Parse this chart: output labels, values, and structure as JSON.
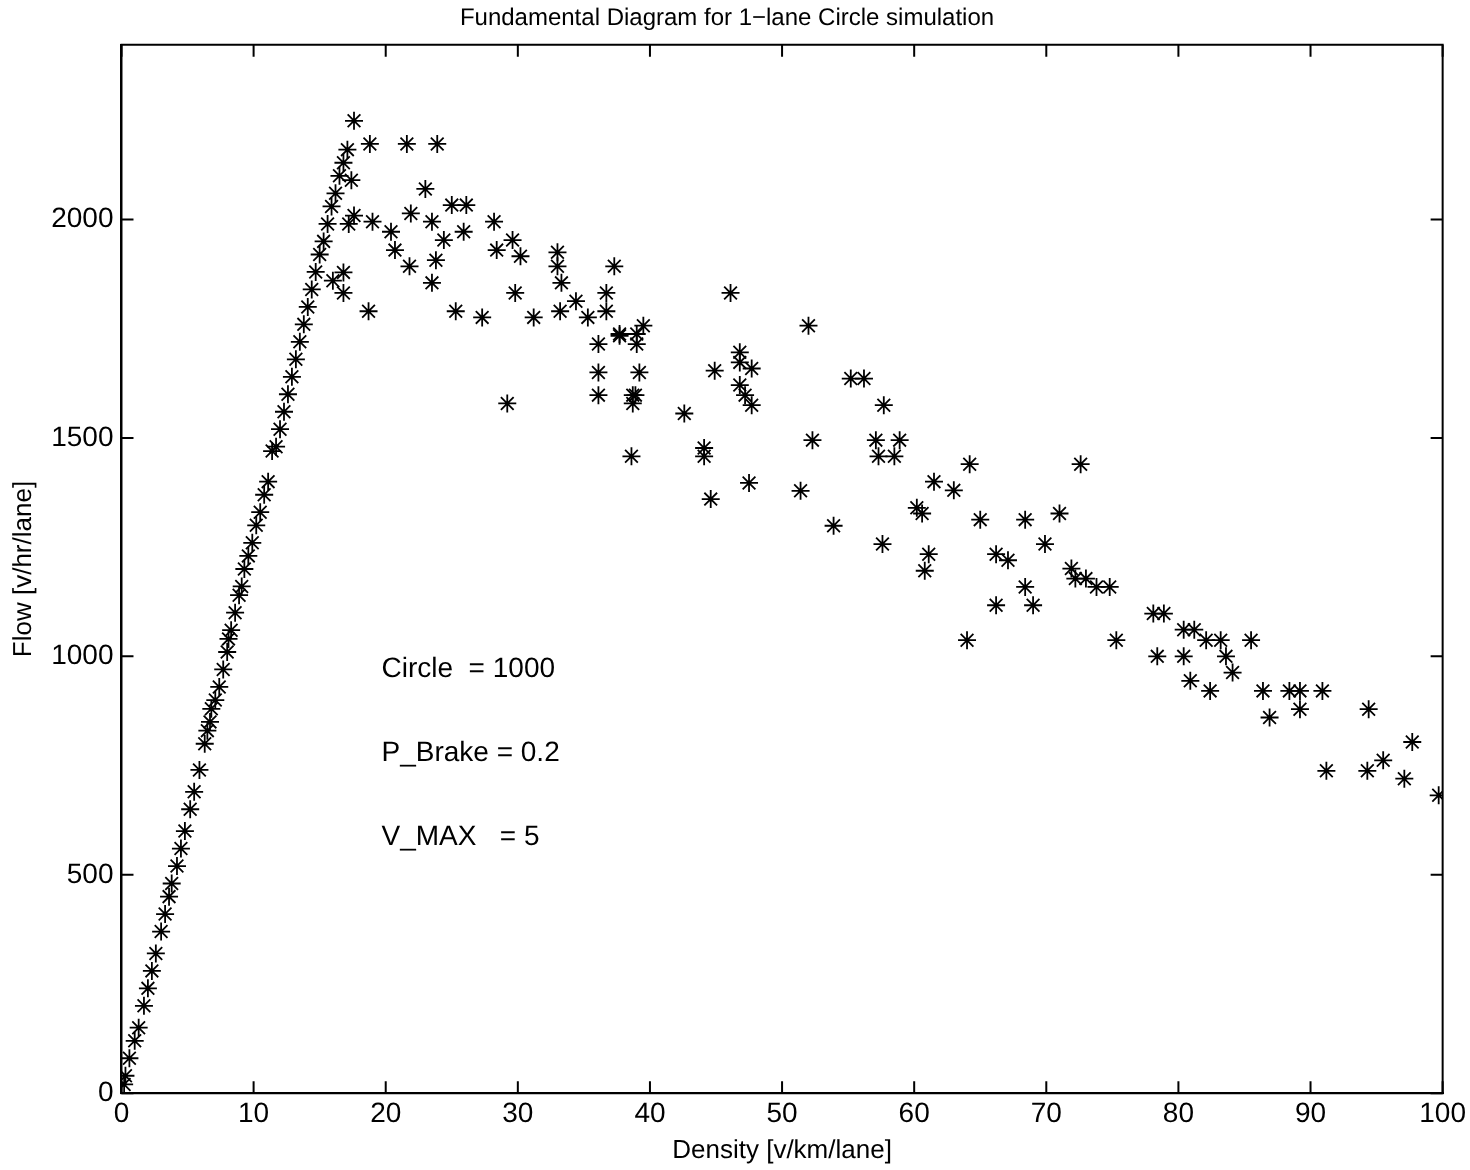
{
  "chart_data": {
    "type": "scatter",
    "title": "Fundamental Diagram for 1−lane Circle simulation",
    "xlabel": "Density [v/km/lane]",
    "ylabel": "Flow [v/hr/lane]",
    "xlim": [
      0,
      100
    ],
    "xticks": [
      0,
      10,
      20,
      30,
      40,
      50,
      60,
      70,
      80,
      90,
      100
    ],
    "ylim": [
      0,
      2400
    ],
    "yticks": [
      0,
      500,
      1000,
      1500,
      2000
    ],
    "grid": false,
    "legend": false,
    "marker": "cross",
    "annotations": [
      "Circle  = 1000",
      "P_Brake = 0.2",
      "V_MAX   = 5"
    ],
    "series": [
      {
        "color": "#000000",
        "x": [
          0.2,
          0.3,
          0.6,
          1,
          1.3,
          1.7,
          2,
          2.3,
          2.6,
          3,
          3.3,
          3.6,
          3.8,
          4.2,
          4.5,
          4.8,
          5.2,
          5.5,
          5.9,
          6.3,
          6.5,
          6.7,
          6.8,
          7.1,
          7.4,
          7.7,
          8,
          8.1,
          8.3,
          8.6,
          8.9,
          9.1,
          9.3,
          9.6,
          9.9,
          10.2,
          10.5,
          10.8,
          11.1,
          11.4,
          11.7,
          12,
          12.3,
          12.6,
          12.9,
          13.2,
          13.5,
          13.8,
          14.1,
          14.4,
          14.7,
          15,
          15.3,
          15.6,
          15.9,
          16.2,
          16.5,
          16.8,
          17.1,
          17.6,
          16,
          16.8,
          16.8,
          17.2,
          17.4,
          18.8,
          21.6,
          23.9,
          23,
          25,
          26.1,
          17.6,
          19,
          20.4,
          21.9,
          20.7,
          23.5,
          24.4,
          25.9,
          23.8,
          21.8,
          23.5,
          18.7,
          28.2,
          29.6,
          28.4,
          30.2,
          33,
          33,
          37.3,
          25.3,
          27.3,
          29.8,
          31.2,
          33.3,
          33.2,
          34.4,
          35.3,
          36.7,
          36.7,
          36.1,
          37.7,
          39,
          39.5,
          39,
          36.1,
          39.2,
          36.1,
          38.7,
          29.2,
          46.1,
          52,
          38.9,
          38.7,
          37.7,
          42.6,
          38.6,
          44.1,
          44.1,
          44.9,
          46.8,
          46.8,
          47.7,
          46.8,
          47.2,
          47.7,
          47.5,
          44.6,
          51.4,
          52.3,
          53.9,
          57.6,
          55.2,
          56.2,
          57.7,
          57.1,
          58.9,
          57.3,
          58.5,
          61.1,
          60.8,
          66.2,
          67.1,
          69.9,
          66.2,
          69,
          68.4,
          64,
          71.9,
          72.2,
          73,
          73.8,
          74.8,
          75.3,
          78.1,
          78.9,
          78.4,
          80.4,
          80.4,
          81.2,
          82.1,
          83.2,
          85.5,
          83.6,
          84.1,
          80.9,
          82.4,
          86.9,
          86.4,
          88.4,
          89.2,
          90.9,
          89.2,
          94.4,
          91.2,
          94.3,
          95.5,
          97.1,
          97.7,
          99.7,
          60.6,
          65,
          68.4,
          71,
          61.5,
          63,
          64.2,
          60.2,
          72.6
        ],
        "values": [
          20,
          40,
          80,
          120,
          150,
          200,
          240,
          280,
          320,
          370,
          410,
          450,
          480,
          520,
          560,
          600,
          650,
          690,
          740,
          800,
          830,
          850,
          880,
          900,
          930,
          970,
          1010,
          1040,
          1060,
          1100,
          1140,
          1160,
          1200,
          1230,
          1260,
          1300,
          1330,
          1370,
          1400,
          1470,
          1480,
          1520,
          1560,
          1600,
          1640,
          1680,
          1720,
          1760,
          1800,
          1840,
          1880,
          1920,
          1950,
          1990,
          2030,
          2060,
          2100,
          2130,
          2160,
          2226,
          1860,
          1879,
          1832,
          1990,
          2090,
          2173,
          2173,
          2173,
          2070,
          2033,
          2033,
          2009,
          1995,
          1972,
          2014,
          1930,
          1995,
          1953,
          1972,
          1907,
          1893,
          1855,
          1790,
          1995,
          1953,
          1930,
          1916,
          1925,
          1893,
          1893,
          1790,
          1776,
          1832,
          1776,
          1855,
          1790,
          1813,
          1776,
          1832,
          1790,
          1715,
          1738,
          1738,
          1757,
          1715,
          1650,
          1650,
          1598,
          1598,
          1579,
          1832,
          1757,
          1598,
          1579,
          1734,
          1556,
          1458,
          1477,
          1458,
          1654,
          1696,
          1673,
          1659,
          1621,
          1598,
          1575,
          1397,
          1360,
          1379,
          1495,
          1299,
          1257,
          1636,
          1636,
          1575,
          1495,
          1495,
          1458,
          1458,
          1234,
          1196,
          1234,
          1220,
          1257,
          1117,
          1117,
          1159,
          1037,
          1201,
          1178,
          1178,
          1159,
          1159,
          1037,
          1098,
          1098,
          1000,
          1000,
          1061,
          1061,
          1037,
          1037,
          1037,
          1000,
          963,
          944,
          921,
          860,
          921,
          921,
          921,
          921,
          879,
          879,
          738,
          738,
          762,
          720,
          804,
          682,
          1327,
          1313,
          1313,
          1327,
          1400,
          1380,
          1440,
          1340,
          1440
        ]
      }
    ]
  }
}
